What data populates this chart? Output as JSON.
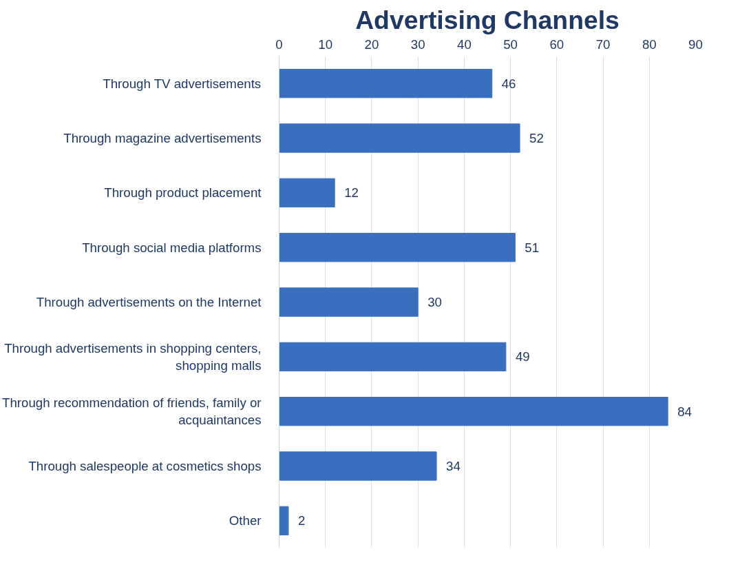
{
  "chart_data": {
    "type": "bar",
    "orientation": "horizontal",
    "title": "Advertising Channels",
    "categories": [
      "Through TV advertisements",
      "Through magazine advertisements",
      "Through product placement",
      "Through social media platforms",
      "Through advertisements on the Internet",
      "Through advertisements in shopping centers, shopping malls",
      "Through recommendation of friends, family or acquaintances",
      "Through salespeople at cosmetics shops",
      "Other"
    ],
    "values": [
      46,
      52,
      12,
      51,
      30,
      49,
      84,
      34,
      2
    ],
    "color": "#3a6fbf",
    "xlim": [
      0,
      90
    ],
    "xticks": [
      0,
      10,
      20,
      30,
      40,
      50,
      60,
      70,
      80,
      90
    ],
    "grid": "x",
    "data_labels": true
  }
}
